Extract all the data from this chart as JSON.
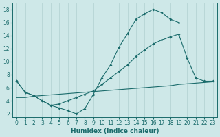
{
  "xlabel": "Humidex (Indice chaleur)",
  "background_color": "#cee8e8",
  "grid_color": "#b0d0d0",
  "line_color": "#1a6b6b",
  "xlim": [
    -0.5,
    23.5
  ],
  "ylim": [
    1.5,
    19
  ],
  "yticks": [
    2,
    4,
    6,
    8,
    10,
    12,
    14,
    16,
    18
  ],
  "xticks": [
    0,
    1,
    2,
    3,
    4,
    5,
    6,
    7,
    8,
    9,
    10,
    11,
    12,
    13,
    14,
    15,
    16,
    17,
    18,
    19,
    20,
    21,
    22,
    23
  ],
  "line1_x": [
    0,
    1,
    2,
    3,
    4,
    5,
    6,
    7,
    8,
    9,
    10,
    11,
    12,
    13,
    14,
    15,
    16,
    17,
    18,
    19
  ],
  "line1_y": [
    7,
    5.3,
    4.8,
    4.0,
    3.3,
    2.9,
    2.5,
    2.0,
    2.8,
    5.0,
    7.5,
    9.5,
    12.2,
    14.3,
    16.5,
    17.3,
    18.0,
    17.5,
    16.5,
    16.0
  ],
  "line2_x": [
    0,
    1,
    2,
    3,
    4,
    5,
    6,
    7,
    8,
    9,
    10,
    11,
    12,
    13,
    14,
    15,
    16,
    17,
    18,
    19,
    20,
    21,
    22,
    23
  ],
  "line2_y": [
    7,
    5.3,
    4.8,
    4.0,
    3.3,
    3.5,
    4.0,
    4.5,
    5.0,
    5.5,
    6.5,
    7.5,
    8.5,
    9.5,
    10.8,
    11.8,
    12.7,
    13.3,
    13.8,
    14.2,
    10.5,
    7.5,
    7.0,
    7.0
  ],
  "line3_x": [
    0,
    1,
    2,
    3,
    4,
    5,
    6,
    7,
    8,
    9,
    10,
    11,
    12,
    13,
    14,
    15,
    16,
    17,
    18,
    19,
    20,
    21,
    22,
    23
  ],
  "line3_y": [
    4.5,
    4.5,
    4.7,
    4.8,
    4.9,
    5.0,
    5.1,
    5.2,
    5.3,
    5.4,
    5.5,
    5.6,
    5.7,
    5.8,
    5.9,
    6.0,
    6.1,
    6.2,
    6.3,
    6.5,
    6.6,
    6.7,
    6.8,
    6.9
  ]
}
